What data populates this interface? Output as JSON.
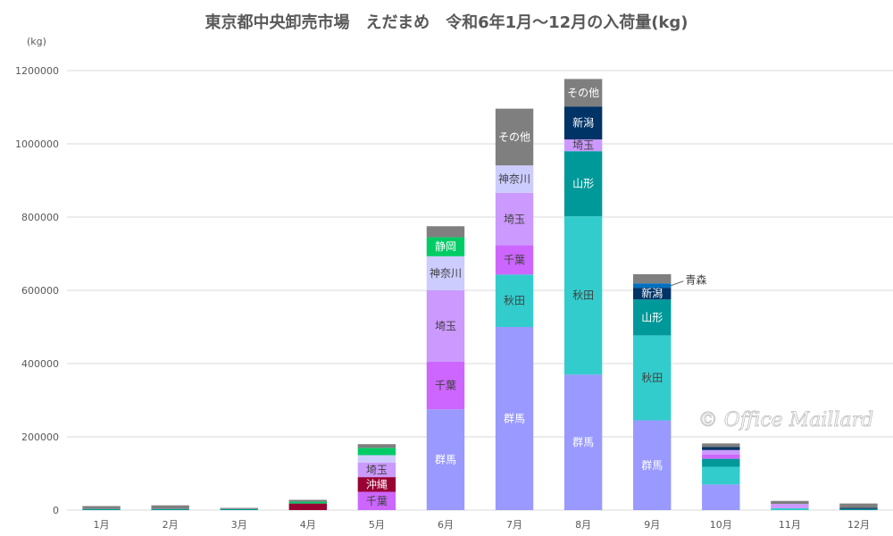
{
  "chart_data": {
    "type": "bar",
    "stacked": true,
    "title": "東京都中央卸売市場　えだまめ　令和6年1月～12月の入荷量(kg)",
    "ylabel": "(kg)",
    "ylim": [
      0,
      1200000
    ],
    "yticks": [
      "0",
      "200000",
      "400000",
      "600000",
      "800000",
      "1000000",
      "1200000"
    ],
    "categories": [
      "1月",
      "2月",
      "3月",
      "4月",
      "5月",
      "6月",
      "7月",
      "8月",
      "9月",
      "10月",
      "11月",
      "12月"
    ],
    "grid": true,
    "watermark": "© Office Maillard",
    "series": [
      {
        "name": "群馬",
        "color": "#9999ff",
        "values": [
          0,
          0,
          0,
          0,
          0,
          275000,
          500000,
          370000,
          245000,
          70000,
          0,
          0
        ]
      },
      {
        "name": "秋田",
        "color": "#33cccc",
        "values": [
          0,
          0,
          0,
          0,
          0,
          0,
          143000,
          432000,
          232000,
          48000,
          5000,
          0
        ]
      },
      {
        "name": "山形",
        "color": "#009999",
        "values": [
          3000,
          3000,
          3000,
          0,
          0,
          0,
          0,
          178000,
          98000,
          22000,
          0,
          3000
        ]
      },
      {
        "name": "千葉",
        "color": "#cc66ff",
        "values": [
          0,
          0,
          0,
          0,
          50000,
          130000,
          80000,
          0,
          0,
          12000,
          0,
          0
        ]
      },
      {
        "name": "沖縄",
        "color": "#990033",
        "values": [
          0,
          0,
          0,
          18000,
          40000,
          0,
          0,
          0,
          0,
          0,
          0,
          0
        ]
      },
      {
        "name": "埼玉",
        "color": "#cc99ff",
        "values": [
          0,
          0,
          0,
          0,
          40000,
          195000,
          143000,
          32000,
          0,
          12000,
          12000,
          0
        ]
      },
      {
        "name": "神奈川",
        "color": "#ccccff",
        "values": [
          0,
          0,
          0,
          0,
          20000,
          93000,
          75000,
          0,
          0,
          0,
          0,
          0
        ]
      },
      {
        "name": "静岡",
        "color": "#00cc66",
        "values": [
          0,
          0,
          0,
          5000,
          20000,
          52000,
          0,
          0,
          0,
          0,
          0,
          0
        ]
      },
      {
        "name": "新潟",
        "color": "#003366",
        "values": [
          0,
          0,
          0,
          0,
          0,
          0,
          0,
          90000,
          32000,
          8000,
          0,
          3000
        ]
      },
      {
        "name": "青森",
        "color": "#0070c0",
        "values": [
          0,
          0,
          0,
          0,
          0,
          0,
          0,
          0,
          12000,
          0,
          0,
          0
        ]
      },
      {
        "name": "その他",
        "color": "#7f7f7f",
        "values": [
          8000,
          10000,
          3000,
          5000,
          10000,
          30000,
          155000,
          75000,
          25000,
          10000,
          8000,
          12000
        ]
      }
    ],
    "segment_labels": [
      {
        "cat": "5月",
        "series": "千葉"
      },
      {
        "cat": "5月",
        "series": "沖縄"
      },
      {
        "cat": "5月",
        "series": "埼玉"
      },
      {
        "cat": "6月",
        "series": "群馬"
      },
      {
        "cat": "6月",
        "series": "埼玉"
      },
      {
        "cat": "6月",
        "series": "千葉"
      },
      {
        "cat": "6月",
        "series": "神奈川"
      },
      {
        "cat": "6月",
        "series": "静岡"
      },
      {
        "cat": "7月",
        "series": "群馬"
      },
      {
        "cat": "7月",
        "series": "埼玉"
      },
      {
        "cat": "7月",
        "series": "秋田"
      },
      {
        "cat": "7月",
        "series": "千葉"
      },
      {
        "cat": "7月",
        "series": "神奈川"
      },
      {
        "cat": "7月",
        "series": "その他"
      },
      {
        "cat": "8月",
        "series": "秋田"
      },
      {
        "cat": "8月",
        "series": "群馬"
      },
      {
        "cat": "8月",
        "series": "山形"
      },
      {
        "cat": "8月",
        "series": "新潟"
      },
      {
        "cat": "8月",
        "series": "埼玉"
      },
      {
        "cat": "8月",
        "series": "その他"
      },
      {
        "cat": "9月",
        "series": "群馬"
      },
      {
        "cat": "9月",
        "series": "秋田"
      },
      {
        "cat": "9月",
        "series": "山形"
      },
      {
        "cat": "9月",
        "series": "新潟"
      },
      {
        "cat": "9月",
        "series": "青森",
        "callout": true
      }
    ]
  }
}
